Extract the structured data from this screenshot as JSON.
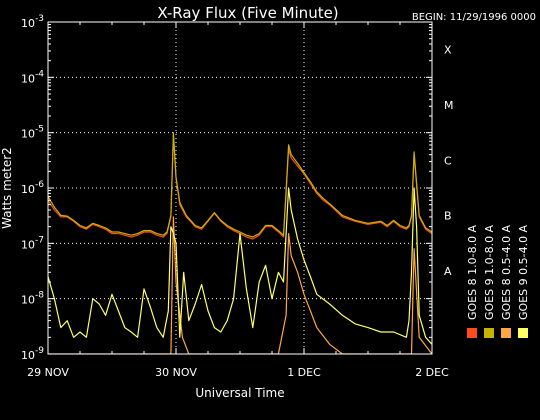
{
  "chart_data": {
    "type": "line",
    "title": "X-Ray Flux (Five Minute)",
    "begin_label": "BEGIN: 11/29/1996 0000",
    "ylabel": "Watts meter",
    "ylabel_exp": "2",
    "xlabel": "Universal Time",
    "y_scale": "log",
    "ylim": [
      1e-09,
      0.001
    ],
    "xlim": [
      0,
      3
    ],
    "grid": true,
    "y_ticks": [
      {
        "value": 1e-09,
        "base": "10",
        "exp": "-9"
      },
      {
        "value": 1e-08,
        "base": "10",
        "exp": "-8"
      },
      {
        "value": 1e-07,
        "base": "10",
        "exp": "-7"
      },
      {
        "value": 1e-06,
        "base": "10",
        "exp": "-6"
      },
      {
        "value": 1e-05,
        "base": "10",
        "exp": "-5"
      },
      {
        "value": 0.0001,
        "base": "10",
        "exp": "-4"
      },
      {
        "value": 0.001,
        "base": "10",
        "exp": "-3"
      }
    ],
    "x_ticks": [
      {
        "value": 0,
        "label": "29 NOV"
      },
      {
        "value": 1,
        "label": "30 NOV"
      },
      {
        "value": 2,
        "label": "1 DEC"
      },
      {
        "value": 3,
        "label": "2 DEC"
      }
    ],
    "flare_classes": [
      {
        "label": "X",
        "value": 0.0001
      },
      {
        "label": "M",
        "value": 1e-05
      },
      {
        "label": "C",
        "value": 1e-06
      },
      {
        "label": "B",
        "value": 1e-07
      },
      {
        "label": "A",
        "value": 1e-08
      }
    ],
    "series": [
      {
        "name": "GOES 8  1.0-8.0 A",
        "color": "#ff4a1c",
        "x": [
          0,
          0.05,
          0.1,
          0.15,
          0.2,
          0.25,
          0.3,
          0.35,
          0.4,
          0.45,
          0.5,
          0.55,
          0.6,
          0.65,
          0.7,
          0.75,
          0.8,
          0.85,
          0.9,
          0.93,
          0.96,
          0.98,
          1.0,
          1.03,
          1.08,
          1.12,
          1.15,
          1.2,
          1.25,
          1.3,
          1.35,
          1.4,
          1.45,
          1.5,
          1.55,
          1.6,
          1.65,
          1.7,
          1.75,
          1.8,
          1.84,
          1.86,
          1.88,
          1.9,
          1.95,
          2.0,
          2.05,
          2.1,
          2.15,
          2.2,
          2.3,
          2.4,
          2.5,
          2.6,
          2.65,
          2.7,
          2.75,
          2.8,
          2.82,
          2.84,
          2.86,
          2.9,
          2.95,
          3.0
        ],
        "y": [
          6e-07,
          4e-07,
          3e-07,
          3e-07,
          2.5e-07,
          2e-07,
          1.8e-07,
          2.2e-07,
          2e-07,
          1.8e-07,
          1.5e-07,
          1.5e-07,
          1.4e-07,
          1.3e-07,
          1.4e-07,
          1.6e-07,
          1.6e-07,
          1.4e-07,
          1.3e-07,
          1.5e-07,
          3e-07,
          9e-06,
          1.5e-06,
          5e-07,
          3e-07,
          2.4e-07,
          2e-07,
          1.8e-07,
          2.5e-07,
          3.5e-07,
          2.5e-07,
          2e-07,
          1.7e-07,
          1.5e-07,
          1.3e-07,
          1.2e-07,
          1.4e-07,
          2e-07,
          2e-07,
          1.6e-07,
          1.3e-07,
          8e-07,
          5e-06,
          3.5e-06,
          2.5e-06,
          1.8e-06,
          1.2e-06,
          8e-07,
          6e-07,
          5e-07,
          3e-07,
          2.5e-07,
          2.2e-07,
          2.4e-07,
          2e-07,
          2.5e-07,
          2e-07,
          1.8e-07,
          2e-07,
          3e-07,
          4e-06,
          3e-07,
          1.8e-07,
          1.5e-07
        ]
      },
      {
        "name": "GOES 8  0.5-4.0 A",
        "color": "#ffa640",
        "x": [
          0,
          0.1,
          0.2,
          0.3,
          0.4,
          0.5,
          0.6,
          0.7,
          0.8,
          0.9,
          0.96,
          0.98,
          1.0,
          1.05,
          1.1,
          1.2,
          1.3,
          1.4,
          1.5,
          1.6,
          1.7,
          1.8,
          1.86,
          1.88,
          1.9,
          1.95,
          2.0,
          2.05,
          2.1,
          2.2,
          2.3,
          2.4,
          2.5,
          2.6,
          2.7,
          2.8,
          2.84,
          2.86,
          2.9,
          3.0
        ],
        "y": [
          1e-09,
          1e-09,
          1e-09,
          1e-09,
          1e-09,
          1e-09,
          1e-09,
          1e-09,
          1e-09,
          1e-09,
          1e-09,
          3e-07,
          2e-08,
          2e-09,
          1e-09,
          1e-09,
          1e-09,
          1e-09,
          1e-09,
          1e-09,
          1e-09,
          1e-09,
          5e-09,
          1.5e-07,
          6e-08,
          3e-08,
          1.2e-08,
          6e-09,
          3e-09,
          1.5e-09,
          1e-09,
          1e-09,
          1e-09,
          1e-09,
          1e-09,
          1e-09,
          1e-09,
          8e-08,
          2e-09,
          1e-09
        ]
      },
      {
        "name": "GOES 9  1.0-8.0 A",
        "color": "#c8b400",
        "x": [
          0,
          0.05,
          0.1,
          0.15,
          0.2,
          0.25,
          0.3,
          0.35,
          0.4,
          0.45,
          0.5,
          0.55,
          0.6,
          0.65,
          0.7,
          0.75,
          0.8,
          0.85,
          0.9,
          0.93,
          0.96,
          0.98,
          1.0,
          1.03,
          1.08,
          1.12,
          1.15,
          1.2,
          1.25,
          1.3,
          1.35,
          1.4,
          1.45,
          1.5,
          1.55,
          1.6,
          1.65,
          1.7,
          1.75,
          1.8,
          1.84,
          1.86,
          1.88,
          1.9,
          1.95,
          2.0,
          2.05,
          2.1,
          2.15,
          2.2,
          2.3,
          2.4,
          2.5,
          2.6,
          2.65,
          2.7,
          2.75,
          2.8,
          2.82,
          2.84,
          2.86,
          2.9,
          2.95,
          3.0
        ],
        "y": [
          7e-07,
          4.5e-07,
          3.2e-07,
          3.1e-07,
          2.6e-07,
          2.1e-07,
          1.9e-07,
          2.3e-07,
          2.1e-07,
          1.9e-07,
          1.6e-07,
          1.6e-07,
          1.5e-07,
          1.4e-07,
          1.5e-07,
          1.7e-07,
          1.7e-07,
          1.5e-07,
          1.4e-07,
          1.6e-07,
          3.2e-07,
          1e-05,
          1.6e-06,
          5.5e-07,
          3.2e-07,
          2.5e-07,
          2.1e-07,
          1.9e-07,
          2.6e-07,
          3.6e-07,
          2.6e-07,
          2.1e-07,
          1.8e-07,
          1.6e-07,
          1.4e-07,
          1.3e-07,
          1.5e-07,
          2.1e-07,
          2.1e-07,
          1.7e-07,
          1.4e-07,
          9e-07,
          6e-06,
          4e-06,
          2.8e-06,
          1.9e-06,
          1.3e-06,
          8.5e-07,
          6.5e-07,
          5.2e-07,
          3.2e-07,
          2.6e-07,
          2.3e-07,
          2.5e-07,
          2.1e-07,
          2.6e-07,
          2.1e-07,
          1.9e-07,
          2.1e-07,
          3.2e-07,
          4.5e-06,
          3.2e-07,
          1.9e-07,
          1.6e-07
        ]
      },
      {
        "name": "GOES 9  0.5-4.0 A",
        "color": "#ffff66",
        "x": [
          0,
          0.05,
          0.1,
          0.15,
          0.2,
          0.25,
          0.3,
          0.35,
          0.4,
          0.45,
          0.5,
          0.55,
          0.6,
          0.65,
          0.7,
          0.75,
          0.8,
          0.85,
          0.9,
          0.94,
          0.96,
          0.98,
          1.0,
          1.03,
          1.06,
          1.1,
          1.15,
          1.2,
          1.25,
          1.3,
          1.35,
          1.4,
          1.45,
          1.5,
          1.55,
          1.6,
          1.65,
          1.7,
          1.75,
          1.8,
          1.84,
          1.86,
          1.88,
          1.9,
          1.95,
          2.0,
          2.05,
          2.1,
          2.2,
          2.3,
          2.4,
          2.5,
          2.6,
          2.7,
          2.8,
          2.82,
          2.84,
          2.86,
          2.88,
          2.9,
          2.95,
          3.0
        ],
        "y": [
          2.5e-08,
          1e-08,
          3e-09,
          4e-09,
          2e-09,
          2.5e-09,
          2e-09,
          1e-08,
          8e-09,
          5e-09,
          1.2e-08,
          6e-09,
          3e-09,
          2.5e-09,
          2e-09,
          1.5e-08,
          7e-09,
          3e-09,
          2e-09,
          6e-09,
          2e-07,
          1.5e-07,
          1e-07,
          2e-09,
          3e-08,
          4e-09,
          8e-09,
          1.8e-08,
          6e-09,
          3e-09,
          2.5e-09,
          4e-09,
          1e-08,
          1.5e-07,
          1.5e-08,
          3e-09,
          2e-08,
          4e-08,
          1e-08,
          3e-08,
          2e-08,
          1.5e-07,
          1e-06,
          4e-07,
          1.2e-07,
          5e-08,
          2.5e-08,
          1.2e-08,
          8e-09,
          5e-09,
          3.5e-09,
          3e-09,
          2.5e-09,
          2.5e-09,
          2e-09,
          4e-09,
          3e-08,
          1e-06,
          2e-07,
          5e-09,
          2e-09,
          1.5e-09
        ]
      }
    ]
  }
}
